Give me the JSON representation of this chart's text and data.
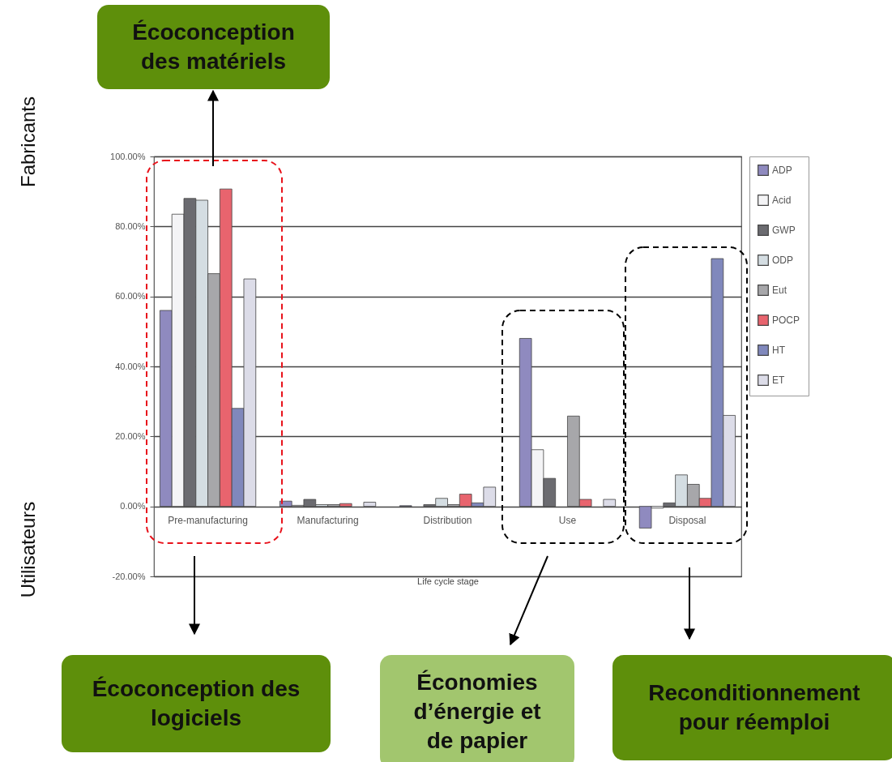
{
  "chart_data": {
    "type": "bar",
    "xlabel": "Life cycle stage",
    "categories": [
      "Pre-manufacturing",
      "Manufacturing",
      "Distribution",
      "Use",
      "Disposal"
    ],
    "series": [
      {
        "name": "ADP",
        "color": "#8f8abf",
        "values": [
          56,
          1.5,
          0.2,
          48,
          -6.2
        ]
      },
      {
        "name": "Acid",
        "color": "#f4f4f6",
        "values": [
          83.5,
          0.3,
          null,
          16.2,
          -0.5
        ]
      },
      {
        "name": "GWP",
        "color": "#6b6b70",
        "values": [
          88,
          2,
          0.5,
          8,
          1
        ]
      },
      {
        "name": "ODP",
        "color": "#d4dde2",
        "values": [
          87.5,
          0.5,
          2.3,
          null,
          9
        ]
      },
      {
        "name": "Eut",
        "color": "#a7a7aa",
        "values": [
          66.5,
          0.5,
          0.5,
          25.8,
          6.3
        ]
      },
      {
        "name": "POCP",
        "color": "#e8646e",
        "values": [
          90.7,
          0.8,
          3.5,
          2,
          2.3
        ]
      },
      {
        "name": "HT",
        "color": "#8088bc",
        "values": [
          28,
          null,
          1,
          null,
          70.8
        ]
      },
      {
        "name": "ET",
        "color": "#dcdce8",
        "values": [
          65,
          1.2,
          5.5,
          2,
          26
        ]
      }
    ],
    "ylim": [
      -20,
      100
    ],
    "yticks": [
      {
        "value": -20,
        "label": "-20.00%"
      },
      {
        "value": 0,
        "label": "0.00%"
      },
      {
        "value": 20,
        "label": "20.00%"
      },
      {
        "value": 40,
        "label": "40.00%"
      },
      {
        "value": 60,
        "label": "60.00%"
      },
      {
        "value": 80,
        "label": "80.00%"
      },
      {
        "value": 100,
        "label": "100.00%"
      }
    ],
    "grid": "y",
    "legend": "right",
    "annotations": [
      "Écoconception des matériels",
      "Écoconception des logiciels",
      "Économies d’énergie et de papier",
      "Reconditionnement pour réemploi",
      "Fabricants",
      "Utilisateurs"
    ]
  }
}
